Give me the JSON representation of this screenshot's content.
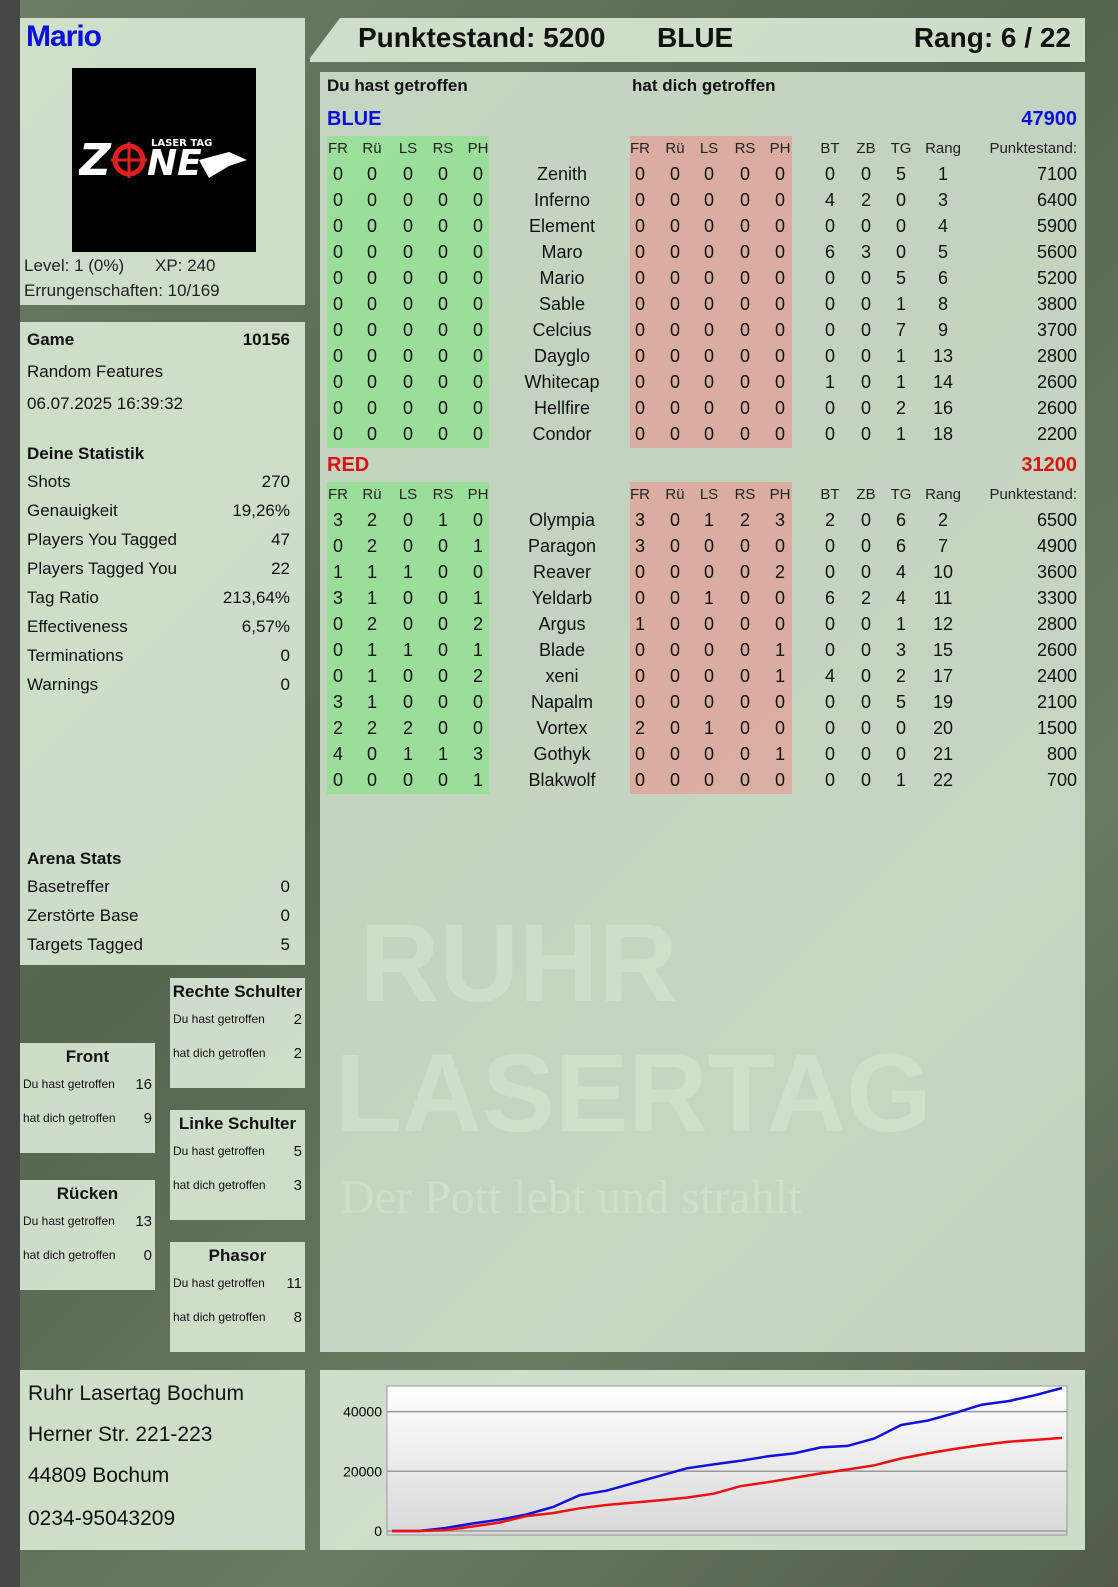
{
  "player": {
    "name": "Mario",
    "logo_text": "ZONE LASER TAG",
    "level": "Level: 1 (0%)",
    "xp": "XP: 240",
    "achievements": "Errungenschaften: 10/169"
  },
  "header": {
    "score": "Punktestand: 5200",
    "team": "BLUE",
    "rank": "Rang: 6 / 22"
  },
  "game": {
    "label": "Game",
    "id": "10156",
    "mode": "Random Features",
    "date": "06.07.2025 16:39:32"
  },
  "stats": {
    "title": "Deine Statistik",
    "items": [
      {
        "label": "Shots",
        "value": "270"
      },
      {
        "label": "Genauigkeit",
        "value": "19,26%"
      },
      {
        "label": "Players You Tagged",
        "value": "47"
      },
      {
        "label": "Players Tagged You",
        "value": "22"
      },
      {
        "label": "Tag Ratio",
        "value": "213,64%"
      },
      {
        "label": "Effectiveness",
        "value": "6,57%"
      },
      {
        "label": "Terminations",
        "value": "0"
      },
      {
        "label": "Warnings",
        "value": "0"
      }
    ]
  },
  "arena": {
    "title": "Arena Stats",
    "items": [
      {
        "label": "Basetreffer",
        "value": "0"
      },
      {
        "label": "Zerstörte Base",
        "value": "0"
      },
      {
        "label": "Targets Tagged",
        "value": "5"
      }
    ]
  },
  "hits": [
    {
      "title": "Rechte Schulter",
      "you_label": "Du hast getroffen",
      "you": "2",
      "them_label": "hat dich getroffen",
      "them": "2"
    },
    {
      "title": "Front",
      "you_label": "Du hast getroffen",
      "you": "16",
      "them_label": "hat dich getroffen",
      "them": "9"
    },
    {
      "title": "Linke Schulter",
      "you_label": "Du hast getroffen",
      "you": "5",
      "them_label": "hat dich getroffen",
      "them": "3"
    },
    {
      "title": "Rücken",
      "you_label": "Du hast getroffen",
      "you": "13",
      "them_label": "hat dich getroffen",
      "them": "0"
    },
    {
      "title": "Phasor",
      "you_label": "Du hast getroffen",
      "you": "11",
      "them_label": "hat dich getroffen",
      "them": "8"
    }
  ],
  "address": [
    "Ruhr Lasertag Bochum",
    "Herner Str. 221-223",
    "44809 Bochum",
    "0234-95043209"
  ],
  "watermark": {
    "line1": "RUHR",
    "line2": "LASERTAG",
    "line3": "Der Pott lebt und strahlt"
  },
  "scoreboard": {
    "you_hit_label": "Du hast getroffen",
    "hit_you_label": "hat dich getroffen",
    "hit_cols": [
      "FR",
      "Rü",
      "LS",
      "RS",
      "PH"
    ],
    "stat_cols": [
      "BT",
      "ZB",
      "TG",
      "Rang"
    ],
    "score_col": "Punktestand:",
    "teams": [
      {
        "name": "BLUE",
        "total": "47900",
        "color": "#0a10e0",
        "players": [
          {
            "name": "Zenith",
            "you": [
              0,
              0,
              0,
              0,
              0
            ],
            "them": [
              0,
              0,
              0,
              0,
              0
            ],
            "stats": [
              0,
              0,
              5,
              1
            ],
            "score": 7100
          },
          {
            "name": "Inferno",
            "you": [
              0,
              0,
              0,
              0,
              0
            ],
            "them": [
              0,
              0,
              0,
              0,
              0
            ],
            "stats": [
              4,
              2,
              0,
              3
            ],
            "score": 6400
          },
          {
            "name": "Element",
            "you": [
              0,
              0,
              0,
              0,
              0
            ],
            "them": [
              0,
              0,
              0,
              0,
              0
            ],
            "stats": [
              0,
              0,
              0,
              4
            ],
            "score": 5900
          },
          {
            "name": "Maro",
            "you": [
              0,
              0,
              0,
              0,
              0
            ],
            "them": [
              0,
              0,
              0,
              0,
              0
            ],
            "stats": [
              6,
              3,
              0,
              5
            ],
            "score": 5600
          },
          {
            "name": "Mario",
            "you": [
              0,
              0,
              0,
              0,
              0
            ],
            "them": [
              0,
              0,
              0,
              0,
              0
            ],
            "stats": [
              0,
              0,
              5,
              6
            ],
            "score": 5200
          },
          {
            "name": "Sable",
            "you": [
              0,
              0,
              0,
              0,
              0
            ],
            "them": [
              0,
              0,
              0,
              0,
              0
            ],
            "stats": [
              0,
              0,
              1,
              8
            ],
            "score": 3800
          },
          {
            "name": "Celcius",
            "you": [
              0,
              0,
              0,
              0,
              0
            ],
            "them": [
              0,
              0,
              0,
              0,
              0
            ],
            "stats": [
              0,
              0,
              7,
              9
            ],
            "score": 3700
          },
          {
            "name": "Dayglo",
            "you": [
              0,
              0,
              0,
              0,
              0
            ],
            "them": [
              0,
              0,
              0,
              0,
              0
            ],
            "stats": [
              0,
              0,
              1,
              13
            ],
            "score": 2800
          },
          {
            "name": "Whitecap",
            "you": [
              0,
              0,
              0,
              0,
              0
            ],
            "them": [
              0,
              0,
              0,
              0,
              0
            ],
            "stats": [
              1,
              0,
              1,
              14
            ],
            "score": 2600
          },
          {
            "name": "Hellfire",
            "you": [
              0,
              0,
              0,
              0,
              0
            ],
            "them": [
              0,
              0,
              0,
              0,
              0
            ],
            "stats": [
              0,
              0,
              2,
              16
            ],
            "score": 2600
          },
          {
            "name": "Condor",
            "you": [
              0,
              0,
              0,
              0,
              0
            ],
            "them": [
              0,
              0,
              0,
              0,
              0
            ],
            "stats": [
              0,
              0,
              1,
              18
            ],
            "score": 2200
          }
        ]
      },
      {
        "name": "RED",
        "total": "31200",
        "color": "#e01010",
        "players": [
          {
            "name": "Olympia",
            "you": [
              3,
              2,
              0,
              1,
              0
            ],
            "them": [
              3,
              0,
              1,
              2,
              3
            ],
            "stats": [
              2,
              0,
              6,
              2
            ],
            "score": 6500
          },
          {
            "name": "Paragon",
            "you": [
              0,
              2,
              0,
              0,
              1
            ],
            "them": [
              3,
              0,
              0,
              0,
              0
            ],
            "stats": [
              0,
              0,
              6,
              7
            ],
            "score": 4900
          },
          {
            "name": "Reaver",
            "you": [
              1,
              1,
              1,
              0,
              0
            ],
            "them": [
              0,
              0,
              0,
              0,
              2
            ],
            "stats": [
              0,
              0,
              4,
              10
            ],
            "score": 3600
          },
          {
            "name": "Yeldarb",
            "you": [
              3,
              1,
              0,
              0,
              1
            ],
            "them": [
              0,
              0,
              1,
              0,
              0
            ],
            "stats": [
              6,
              2,
              4,
              11
            ],
            "score": 3300
          },
          {
            "name": "Argus",
            "you": [
              0,
              2,
              0,
              0,
              2
            ],
            "them": [
              1,
              0,
              0,
              0,
              0
            ],
            "stats": [
              0,
              0,
              1,
              12
            ],
            "score": 2800
          },
          {
            "name": "Blade",
            "you": [
              0,
              1,
              1,
              0,
              1
            ],
            "them": [
              0,
              0,
              0,
              0,
              1
            ],
            "stats": [
              0,
              0,
              3,
              15
            ],
            "score": 2600
          },
          {
            "name": "xeni",
            "you": [
              0,
              1,
              0,
              0,
              2
            ],
            "them": [
              0,
              0,
              0,
              0,
              1
            ],
            "stats": [
              4,
              0,
              2,
              17
            ],
            "score": 2400
          },
          {
            "name": "Napalm",
            "you": [
              3,
              1,
              0,
              0,
              0
            ],
            "them": [
              0,
              0,
              0,
              0,
              0
            ],
            "stats": [
              0,
              0,
              5,
              19
            ],
            "score": 2100
          },
          {
            "name": "Vortex",
            "you": [
              2,
              2,
              2,
              0,
              0
            ],
            "them": [
              2,
              0,
              1,
              0,
              0
            ],
            "stats": [
              0,
              0,
              0,
              20
            ],
            "score": 1500
          },
          {
            "name": "Gothyk",
            "you": [
              4,
              0,
              1,
              1,
              3
            ],
            "them": [
              0,
              0,
              0,
              0,
              1
            ],
            "stats": [
              0,
              0,
              0,
              21
            ],
            "score": 800
          },
          {
            "name": "Blakwolf",
            "you": [
              0,
              0,
              0,
              0,
              1
            ],
            "them": [
              0,
              0,
              0,
              0,
              0
            ],
            "stats": [
              0,
              0,
              1,
              22
            ],
            "score": 700
          }
        ]
      }
    ]
  },
  "chart_data": {
    "type": "line",
    "ylim": [
      0,
      47900
    ],
    "yticks": [
      "0",
      "20000",
      "40000"
    ],
    "grid": true,
    "series": [
      {
        "color": "#1010e0",
        "values": [
          0,
          0,
          1000,
          2500,
          3800,
          5500,
          8000,
          12000,
          13500,
          16000,
          18500,
          21000,
          22300,
          23500,
          25000,
          26000,
          28000,
          28500,
          31000,
          35500,
          37000,
          39500,
          42300,
          43500,
          45500,
          47900
        ]
      },
      {
        "color": "#ee1010",
        "values": [
          0,
          0,
          300,
          1500,
          2800,
          5000,
          6000,
          7600,
          8700,
          9500,
          10300,
          11200,
          12500,
          15000,
          16300,
          17800,
          19300,
          20600,
          22000,
          24300,
          26000,
          27500,
          28800,
          29900,
          30500,
          31200
        ]
      }
    ]
  }
}
